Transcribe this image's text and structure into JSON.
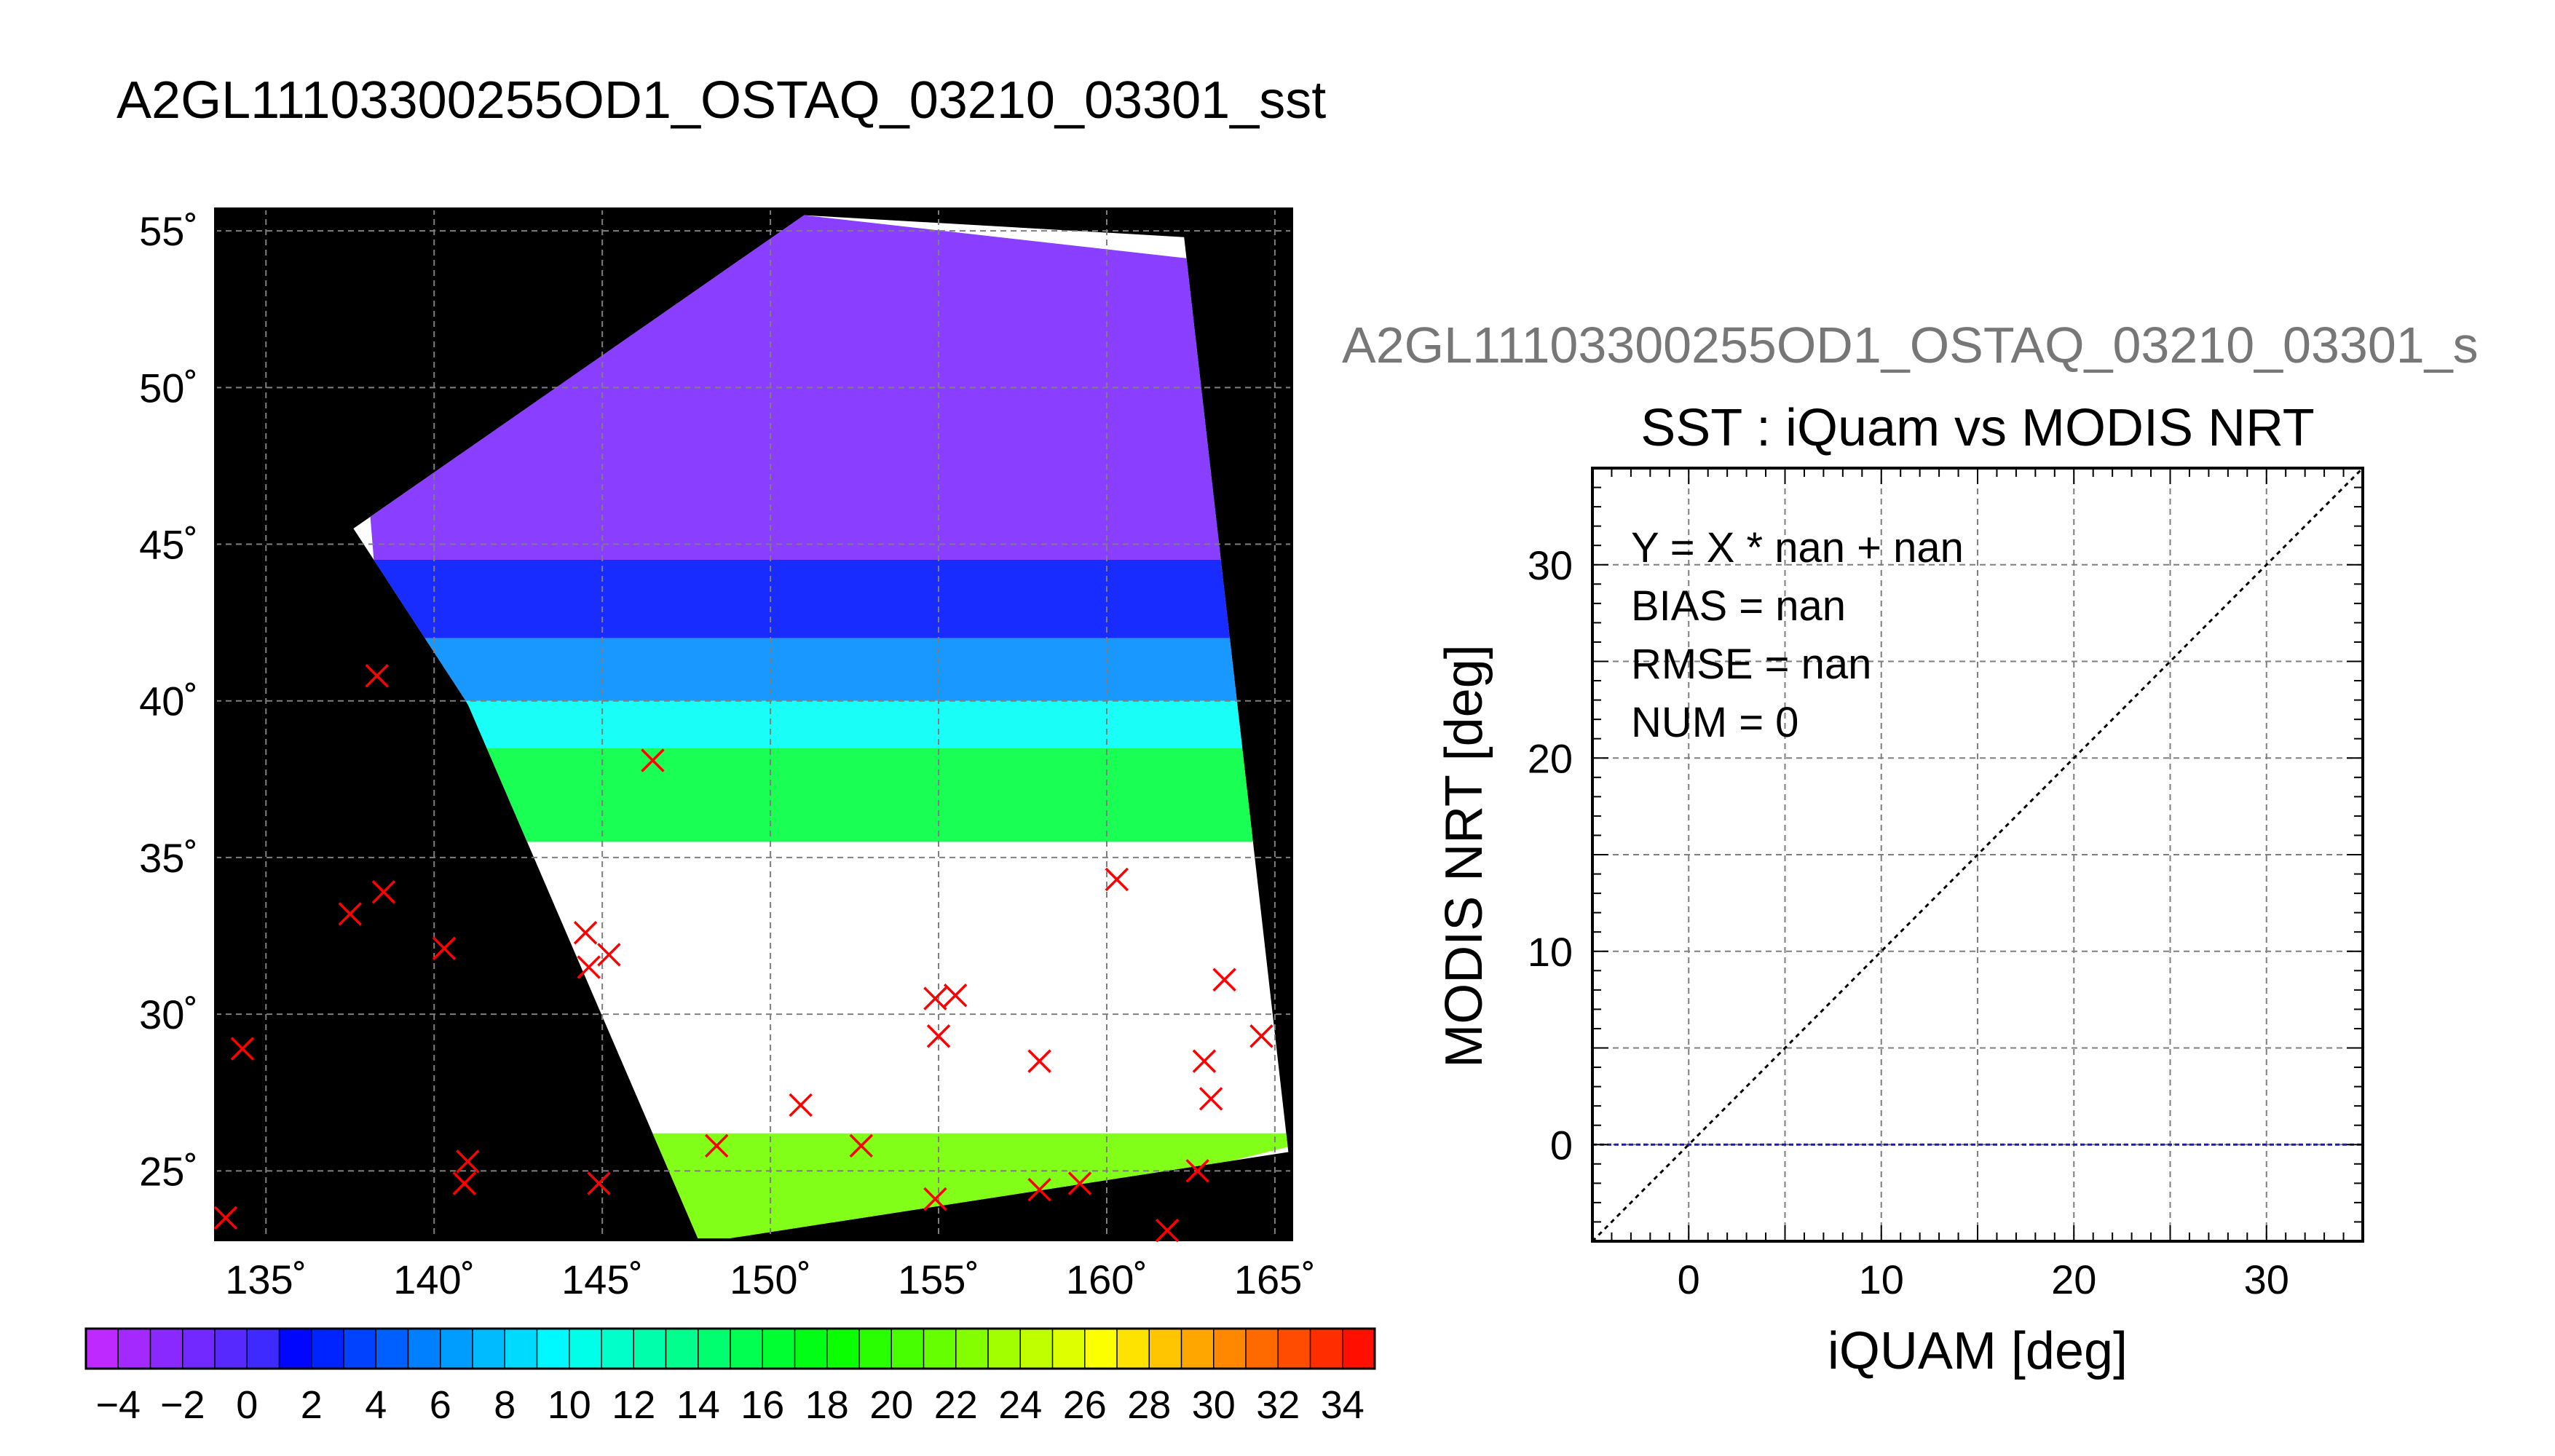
{
  "figure_title": "A2GL11103300255OD1_OSTAQ_03210_03301_sst",
  "colors": {
    "land": "#000000",
    "cloud": "#ffffff",
    "grid": "#7f7f7f",
    "marker": "#ff0000",
    "zero_line": "#1a1ab4",
    "identity_line": "#000000"
  },
  "chart_data": [
    {
      "type": "map",
      "title": "",
      "projection": "equirectangular",
      "lon_range": [
        133.5,
        165.5
      ],
      "lat_range": [
        22.8,
        55.7
      ],
      "x_ticks": [
        135,
        140,
        145,
        150,
        155,
        160,
        165
      ],
      "y_ticks": [
        25,
        30,
        35,
        40,
        45,
        50,
        55
      ],
      "x_tick_labels": [
        "135˚",
        "140˚",
        "145˚",
        "150˚",
        "155˚",
        "160˚",
        "165˚"
      ],
      "y_tick_labels": [
        "25˚",
        "30˚",
        "35˚",
        "40˚",
        "45˚",
        "50˚",
        "55˚"
      ],
      "grid": true,
      "field": "sst",
      "swath_corners_lonlat": [
        [
          151.0,
          55.5
        ],
        [
          162.3,
          54.8
        ],
        [
          165.4,
          25.6
        ],
        [
          147.9,
          22.7
        ],
        [
          141.0,
          39.9
        ],
        [
          137.6,
          45.5
        ]
      ],
      "sst_bands": [
        {
          "lat_top": 55.5,
          "lat_bottom": 44.5,
          "sst": -2
        },
        {
          "lat_top": 44.5,
          "lat_bottom": 42.0,
          "sst": 2
        },
        {
          "lat_top": 42.0,
          "lat_bottom": 40.0,
          "sst": 6
        },
        {
          "lat_top": 40.0,
          "lat_bottom": 38.5,
          "sst": 10
        },
        {
          "lat_top": 38.5,
          "lat_bottom": 35.5,
          "sst": 16
        },
        {
          "lat_top": 26.2,
          "lat_bottom": 22.7,
          "sst": 22
        }
      ],
      "markers": [
        {
          "lon": 133.8,
          "lat": 23.5
        },
        {
          "lon": 134.3,
          "lat": 28.9
        },
        {
          "lon": 137.5,
          "lat": 33.2
        },
        {
          "lon": 138.5,
          "lat": 33.9
        },
        {
          "lon": 138.3,
          "lat": 40.8
        },
        {
          "lon": 140.3,
          "lat": 32.1
        },
        {
          "lon": 141.0,
          "lat": 25.3
        },
        {
          "lon": 140.9,
          "lat": 24.6
        },
        {
          "lon": 144.5,
          "lat": 32.6
        },
        {
          "lon": 145.2,
          "lat": 31.9
        },
        {
          "lon": 144.6,
          "lat": 31.5
        },
        {
          "lon": 144.9,
          "lat": 24.6
        },
        {
          "lon": 146.5,
          "lat": 38.1
        },
        {
          "lon": 148.4,
          "lat": 25.8
        },
        {
          "lon": 150.9,
          "lat": 27.1
        },
        {
          "lon": 152.7,
          "lat": 25.8
        },
        {
          "lon": 154.9,
          "lat": 30.5
        },
        {
          "lon": 155.5,
          "lat": 30.6
        },
        {
          "lon": 155.0,
          "lat": 29.3
        },
        {
          "lon": 154.9,
          "lat": 24.1
        },
        {
          "lon": 158.0,
          "lat": 28.5
        },
        {
          "lon": 158.0,
          "lat": 24.4
        },
        {
          "lon": 159.2,
          "lat": 24.6
        },
        {
          "lon": 160.3,
          "lat": 34.3
        },
        {
          "lon": 161.8,
          "lat": 23.1
        },
        {
          "lon": 162.7,
          "lat": 25.0
        },
        {
          "lon": 162.9,
          "lat": 28.5
        },
        {
          "lon": 163.1,
          "lat": 27.3
        },
        {
          "lon": 163.5,
          "lat": 31.1
        },
        {
          "lon": 164.6,
          "lat": 29.3
        }
      ]
    },
    {
      "type": "colorbar",
      "title": "",
      "range": [
        -5,
        35
      ],
      "step": 2,
      "tick_labels": [
        "−4",
        "−2",
        "0",
        "2",
        "4",
        "6",
        "8",
        "10",
        "12",
        "14",
        "16",
        "18",
        "20",
        "22",
        "24",
        "26",
        "28",
        "30",
        "32",
        "34"
      ],
      "tick_values": [
        -4,
        -2,
        0,
        2,
        4,
        6,
        8,
        10,
        12,
        14,
        16,
        18,
        20,
        22,
        24,
        26,
        28,
        30,
        32,
        34
      ]
    },
    {
      "type": "scatter",
      "title": "SST : iQuam vs MODIS NRT",
      "subtitle": "A2GL11103300255OD1_OSTAQ_03210_03301_s",
      "xlabel": "iQUAM [deg]",
      "ylabel": "MODIS NRT [deg]",
      "xlim": [
        -5,
        35
      ],
      "ylim": [
        -5,
        35
      ],
      "x_ticks": [
        0,
        10,
        20,
        30
      ],
      "y_ticks": [
        0,
        10,
        20,
        30
      ],
      "grid": true,
      "grid_step": 5,
      "stats": [
        "Y = X * nan + nan",
        "BIAS = nan",
        "RMSE = nan",
        "NUM = 0"
      ],
      "points": [],
      "reference_lines": [
        "y = x",
        "y = 0"
      ]
    }
  ]
}
